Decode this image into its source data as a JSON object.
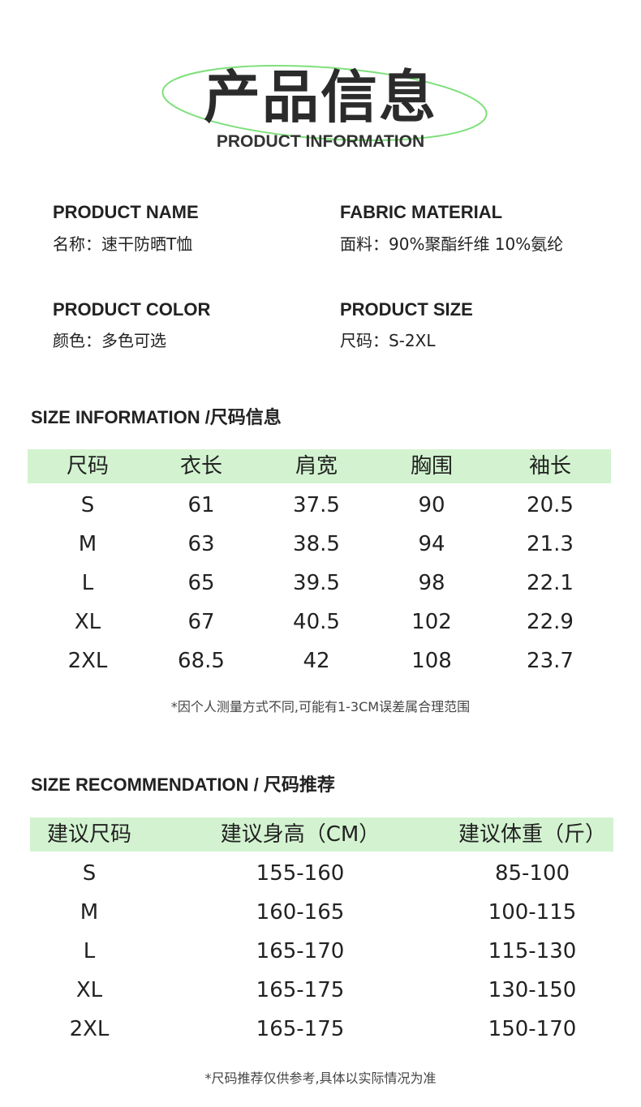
{
  "header": {
    "title": "产品信息",
    "subtitle": "PRODUCT INFORMATION",
    "accent": "#7ee07a"
  },
  "info": [
    {
      "label": "PRODUCT NAME",
      "value": "名称：速干防晒T恤"
    },
    {
      "label": "FABRIC MATERIAL",
      "value": "面料：90%聚酯纤维 10%氨纶"
    },
    {
      "label": "PRODUCT COLOR",
      "value": "颜色：多色可选"
    },
    {
      "label": "PRODUCT SIZE",
      "value": "尺码：S-2XL"
    }
  ],
  "size_info": {
    "title": "SIZE INFORMATION /尺码信息",
    "header_bg": "#d3f3d0",
    "columns": [
      "尺码",
      "衣长",
      "肩宽",
      "胸围",
      "袖长"
    ],
    "rows": [
      [
        "S",
        "61",
        "37.5",
        "90",
        "20.5"
      ],
      [
        "M",
        "63",
        "38.5",
        "94",
        "21.3"
      ],
      [
        "L",
        "65",
        "39.5",
        "98",
        "22.1"
      ],
      [
        "XL",
        "67",
        "40.5",
        "102",
        "22.9"
      ],
      [
        "2XL",
        "68.5",
        "42",
        "108",
        "23.7"
      ]
    ],
    "note": "*因个人测量方式不同,可能有1-3CM误差属合理范围"
  },
  "size_rec": {
    "title": "SIZE RECOMMENDATION / 尺码推荐",
    "columns": [
      "建议尺码",
      "建议身高（CM）",
      "建议体重（斤）"
    ],
    "rows": [
      [
        "S",
        "155-160",
        "85-100"
      ],
      [
        "M",
        "160-165",
        "100-115"
      ],
      [
        "L",
        "165-170",
        "115-130"
      ],
      [
        "XL",
        "165-175",
        "130-150"
      ],
      [
        "2XL",
        "165-175",
        "150-170"
      ]
    ],
    "note": "*尺码推荐仅供参考,具体以实际情况为准"
  }
}
